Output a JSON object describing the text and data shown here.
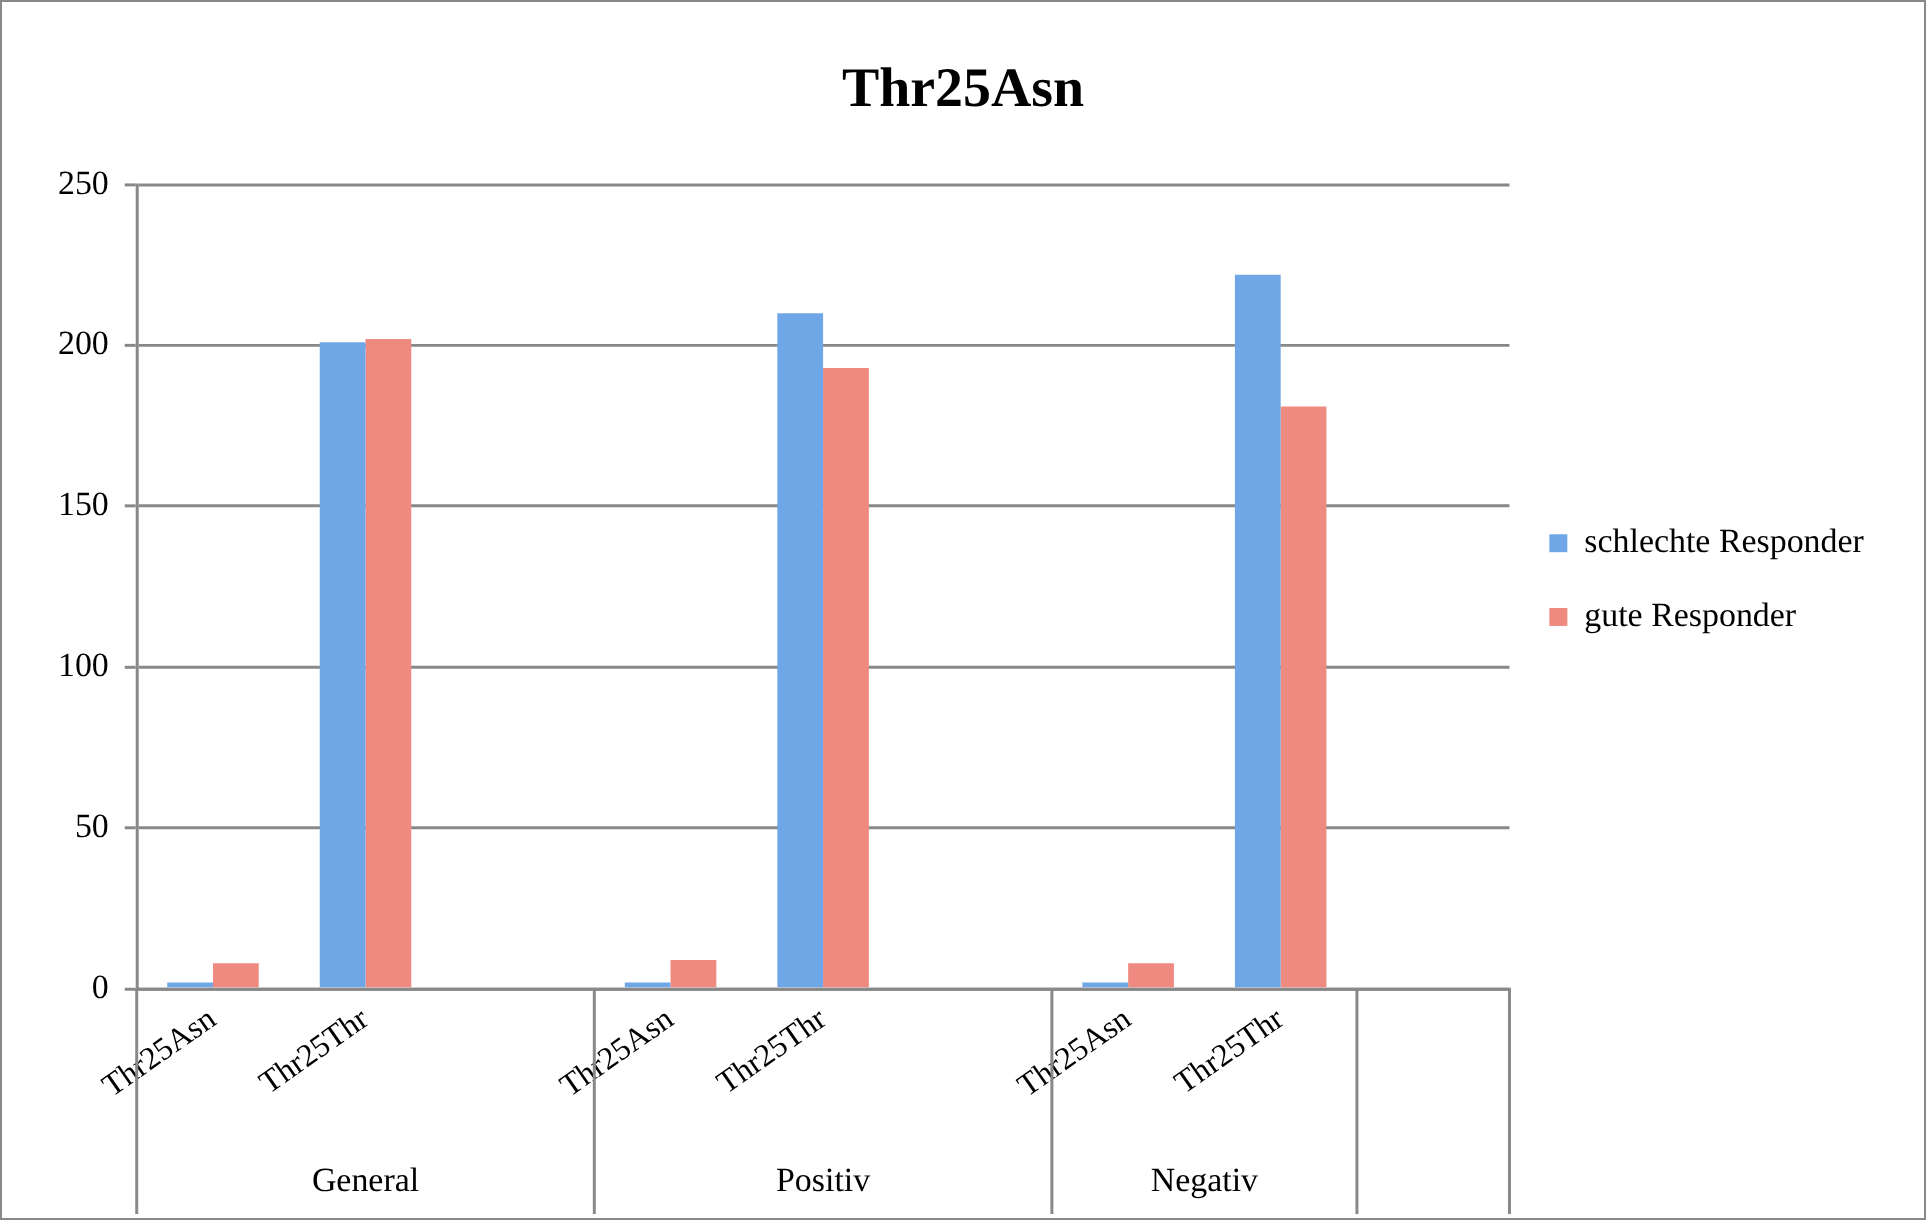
{
  "chart_data": {
    "type": "bar",
    "title": "Thr25Asn",
    "categories": [
      "Thr25Asn",
      "Thr25Thr",
      null,
      "Thr25Asn",
      "Thr25Thr",
      null,
      "Thr25Asn",
      "Thr25Thr",
      null
    ],
    "series": [
      {
        "name": "schlechte Responder",
        "color": "#6fa6e6",
        "values": [
          2,
          201,
          null,
          2,
          210,
          null,
          2,
          222,
          null
        ]
      },
      {
        "name": "gute Responder",
        "color": "#ef8a80",
        "values": [
          8,
          202,
          null,
          9,
          193,
          null,
          8,
          181,
          null
        ]
      }
    ],
    "annotations": [
      "General",
      "Positiv",
      "Negativ"
    ],
    "ylim": [
      0,
      250
    ],
    "yticks": [
      0,
      50,
      100,
      150,
      200,
      250
    ],
    "grid": "y",
    "legend": "right"
  }
}
